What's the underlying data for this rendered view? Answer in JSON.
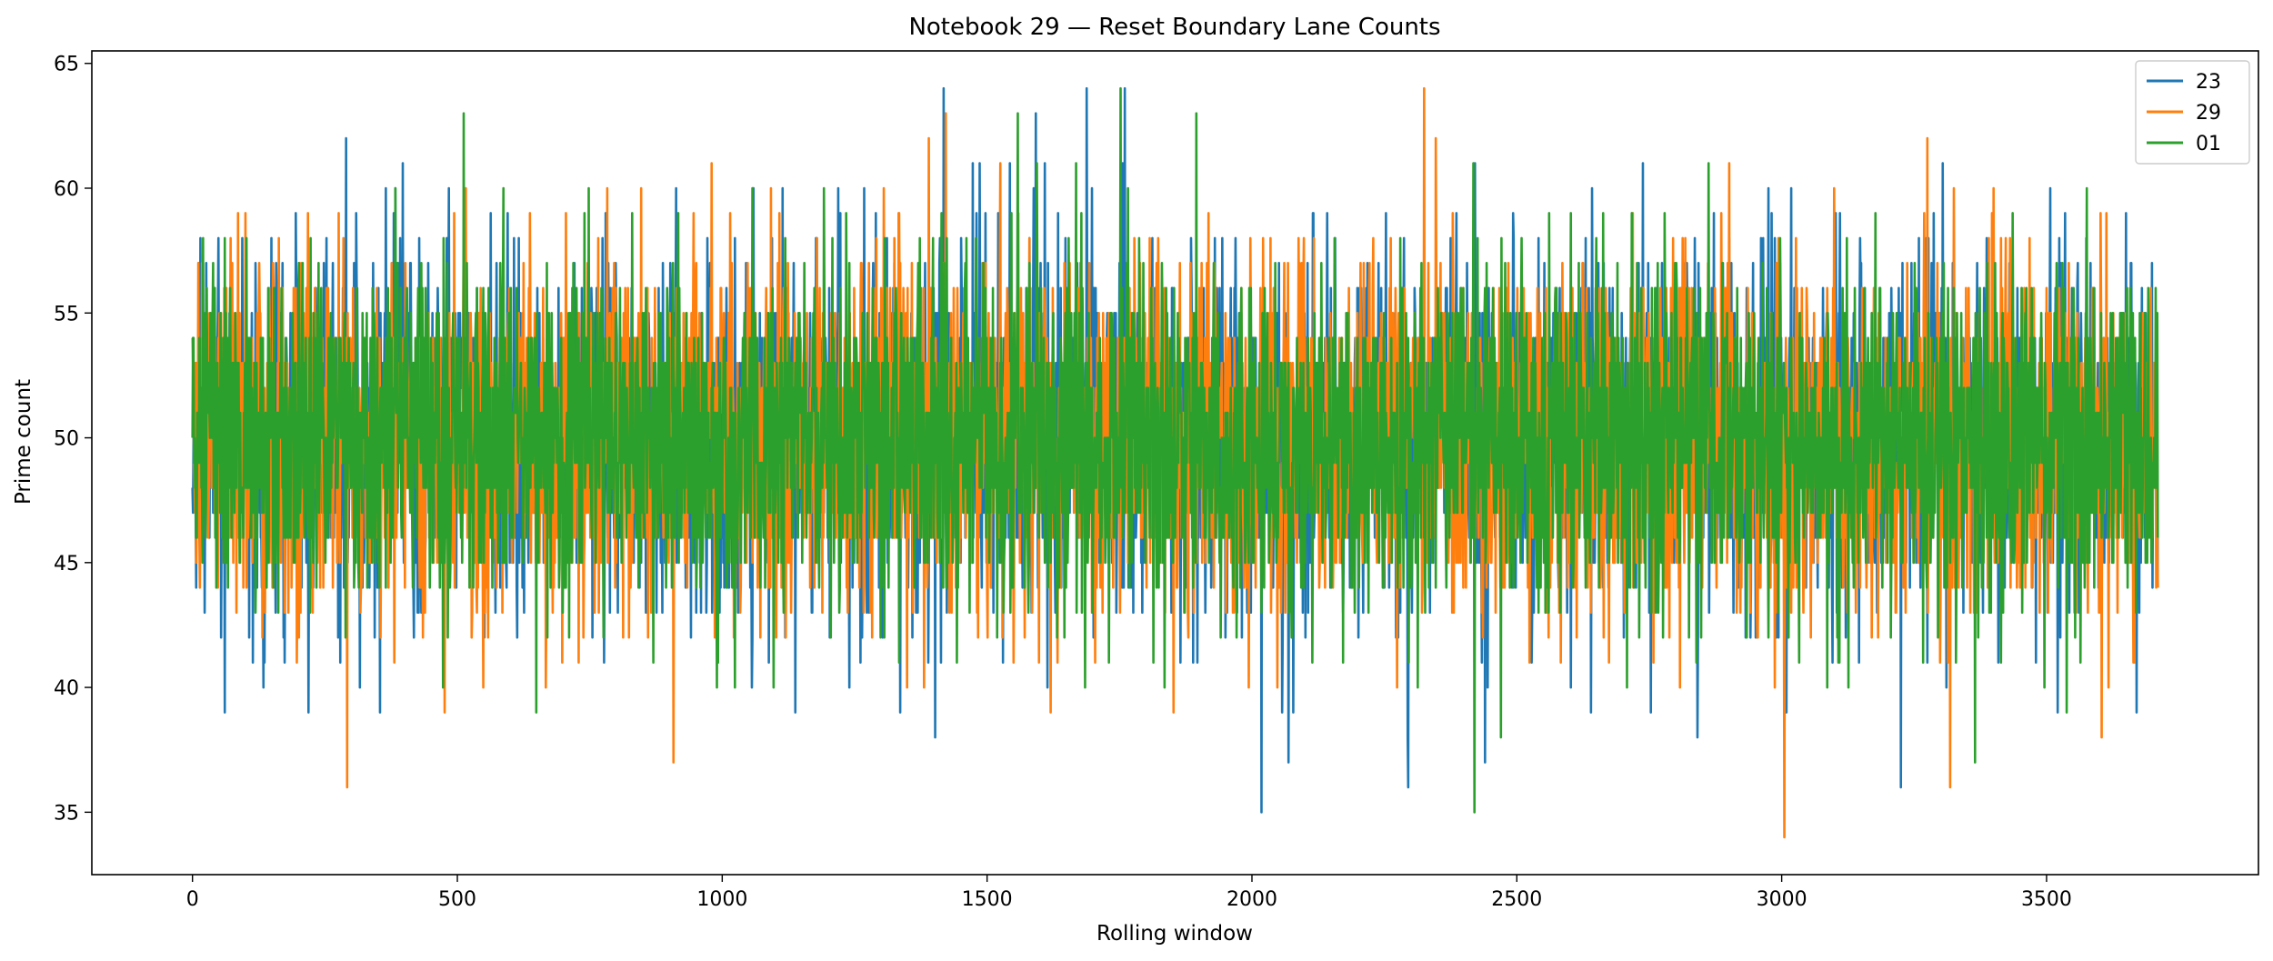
{
  "chart_data": {
    "type": "line",
    "title": "Notebook 29 — Reset Boundary Lane Counts",
    "xlabel": "Rolling window",
    "ylabel": "Prime count",
    "xlim": [
      -190,
      3900
    ],
    "ylim": [
      32.5,
      65.5
    ],
    "xticks": [
      0,
      500,
      1000,
      1500,
      2000,
      2500,
      3000,
      3500
    ],
    "yticks": [
      35,
      40,
      45,
      50,
      55,
      60,
      65
    ],
    "grid": false,
    "legend_position": "top-right",
    "x_range": [
      0,
      3710
    ],
    "series": [
      {
        "name": "23",
        "color": "#1f77b4",
        "mean": 50,
        "spread": 3.6,
        "min": 35,
        "max": 64,
        "peaks": [
          [
            290,
            62
          ],
          [
            1418,
            64
          ],
          [
            1688,
            64
          ],
          [
            1760,
            64
          ]
        ],
        "troughs": [
          [
            2018,
            35
          ],
          [
            2295,
            36
          ],
          [
            3225,
            36
          ],
          [
            1402,
            38
          ]
        ]
      },
      {
        "name": "29",
        "color": "#ff7f0e",
        "mean": 50,
        "spread": 3.6,
        "min": 34,
        "max": 64,
        "peaks": [
          [
            2325,
            64
          ],
          [
            1390,
            62
          ],
          [
            3275,
            62
          ],
          [
            1422,
            63
          ]
        ],
        "troughs": [
          [
            292,
            36
          ],
          [
            3005,
            34
          ],
          [
            908,
            37
          ],
          [
            3318,
            36
          ]
        ]
      },
      {
        "name": "01",
        "color": "#2ca02c",
        "mean": 50,
        "spread": 3.4,
        "min": 35,
        "max": 64,
        "peaks": [
          [
            512,
            63
          ],
          [
            1558,
            63
          ],
          [
            1752,
            64
          ],
          [
            1895,
            63
          ]
        ],
        "troughs": [
          [
            2420,
            35
          ],
          [
            3365,
            37
          ],
          [
            2470,
            38
          ],
          [
            3538,
            39
          ]
        ]
      }
    ]
  }
}
